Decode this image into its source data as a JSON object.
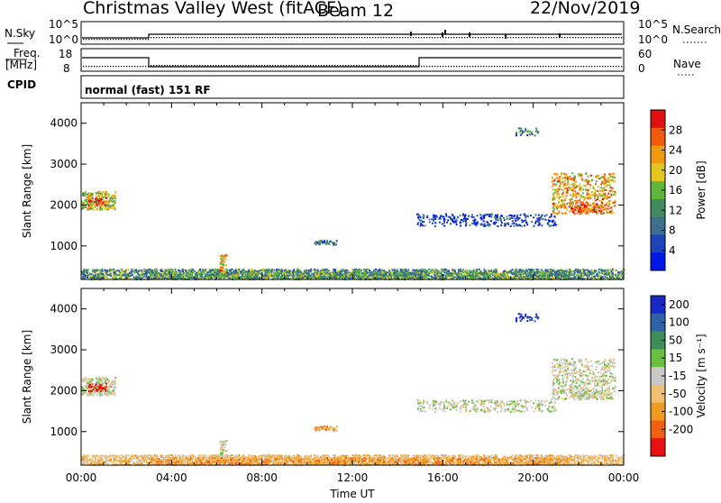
{
  "header": {
    "title": "Christmas Valley West (fitACF)",
    "beam": "Beam 12",
    "date": "22/Nov/2019"
  },
  "strips": {
    "nsky_label": "N.Sky",
    "nsearch_label": "N.Search",
    "freq_label_1": "Freq.",
    "freq_label_2": "[MHz]",
    "nave_label": "Nave",
    "cpid_label": "CPID",
    "cpid_text": "normal (fast) 151 RF",
    "nsky_ticks": [
      "10^5",
      "10^0"
    ],
    "nsearch_ticks": [
      "10^5",
      "10^0"
    ],
    "freq_ticks": [
      "18",
      "8"
    ],
    "nave_ticks": [
      "60",
      "0"
    ]
  },
  "chart_data": [
    {
      "type": "heatmap",
      "name_text": "Power",
      "ylabel": "Slant Range [km]",
      "xlabel": "",
      "yticks": [
        "1000",
        "2000",
        "3000",
        "4000"
      ],
      "ytick_values": [
        1000,
        2000,
        3000,
        4000
      ],
      "ylim": [
        180,
        4500
      ],
      "xlim": [
        0,
        24
      ],
      "colorbar": {
        "label": "Power [dB]",
        "ticks": [
          "4",
          "8",
          "12",
          "16",
          "20",
          "24",
          "28"
        ],
        "tick_values": [
          4,
          8,
          12,
          16,
          20,
          24,
          28
        ],
        "range": [
          0,
          32
        ],
        "colors": [
          "#0018e6",
          "#1c44b8",
          "#3d6f8e",
          "#3f8b5e",
          "#5fb63a",
          "#e4c61e",
          "#ef9a10",
          "#f05a0a",
          "#e01010"
        ]
      }
    },
    {
      "type": "heatmap",
      "name_text": "Velocity",
      "ylabel": "Slant Range [km]",
      "xlabel": "Time UT",
      "yticks": [
        "1000",
        "2000",
        "3000",
        "4000"
      ],
      "ytick_values": [
        1000,
        2000,
        3000,
        4000
      ],
      "ylim": [
        180,
        4500
      ],
      "xlim": [
        0,
        24
      ],
      "xticks": [
        "00:00",
        "04:00",
        "08:00",
        "12:00",
        "16:00",
        "20:00",
        "00:00"
      ],
      "xtick_values": [
        0,
        4,
        8,
        12,
        16,
        20,
        24
      ],
      "colorbar": {
        "label": "Velocity [m s⁻¹]",
        "ticks": [
          "200",
          "100",
          "50",
          "15",
          "-15",
          "-50",
          "-100",
          "-200"
        ],
        "colors": [
          "#1828c8",
          "#2f63a8",
          "#3c8f5a",
          "#69c040",
          "#c8c8c8",
          "#f0c070",
          "#f09a20",
          "#f06010",
          "#e81010"
        ]
      }
    }
  ]
}
